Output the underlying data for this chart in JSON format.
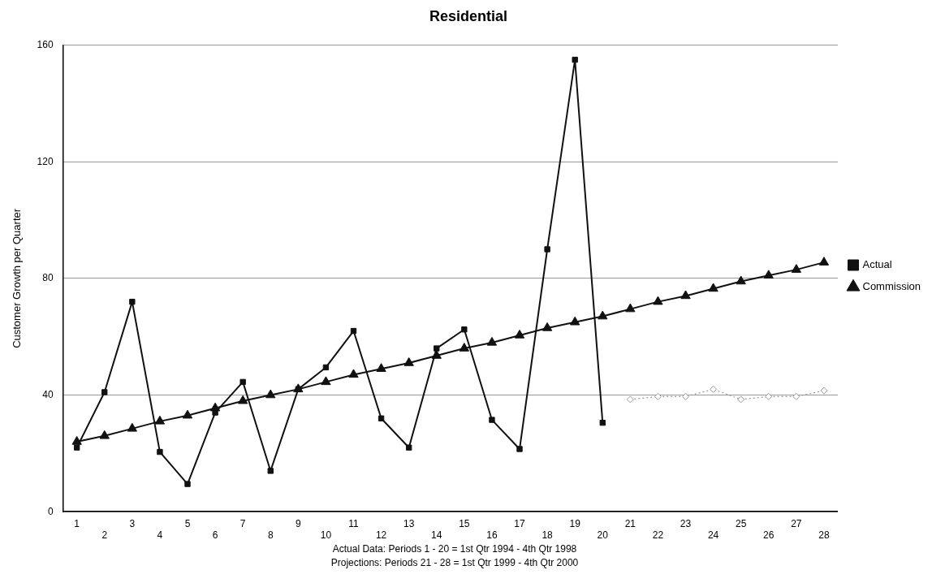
{
  "chart_data": {
    "type": "line",
    "title": "Residential",
    "ylabel": "Customer Growth per Quarter",
    "categories": [
      "1",
      "2",
      "3",
      "4",
      "5",
      "6",
      "7",
      "8",
      "9",
      "10",
      "11",
      "12",
      "13",
      "14",
      "15",
      "16",
      "17",
      "18",
      "19",
      "20",
      "21",
      "22",
      "23",
      "24",
      "25",
      "26",
      "27",
      "28"
    ],
    "series": [
      {
        "name": "Actual",
        "color": "#111111",
        "marker": "square",
        "line_style": "solid",
        "values": [
          22,
          41,
          72,
          20.5,
          9.5,
          34,
          44.5,
          14,
          42,
          49.5,
          62,
          32,
          22,
          56,
          62.5,
          31.5,
          21.5,
          90,
          155,
          30.5,
          null,
          null,
          null,
          null,
          null,
          null,
          null,
          null
        ]
      },
      {
        "color": "#999999",
        "marker": "diamond",
        "line_style": "dotted",
        "values": [
          null,
          null,
          null,
          null,
          null,
          null,
          null,
          null,
          null,
          null,
          null,
          null,
          null,
          null,
          null,
          null,
          null,
          null,
          null,
          null,
          38.5,
          39.5,
          39.5,
          42,
          38.5,
          39.5,
          39.5,
          41.5
        ]
      },
      {
        "name": "Commission",
        "color": "#111111",
        "marker": "triangle",
        "line_style": "solid",
        "values": [
          24,
          26,
          28.5,
          31,
          33,
          35.5,
          38,
          40,
          42,
          44.5,
          47,
          49,
          51,
          53.5,
          56,
          58,
          60.5,
          63,
          65,
          67,
          69.5,
          72,
          74,
          76.5,
          79,
          81,
          83,
          85.5
        ]
      }
    ],
    "ylim": [
      0,
      160
    ],
    "yticks": [
      0,
      40,
      80,
      120,
      160
    ],
    "grid": "y",
    "legend": "right",
    "annotations": [
      "Actual Data:  Periods 1 - 20 = 1st Qtr 1994 - 4th Qtr 1998",
      "Projections:  Periods 21 - 28 = 1st Qtr 1999 - 4th Qtr 2000"
    ]
  }
}
